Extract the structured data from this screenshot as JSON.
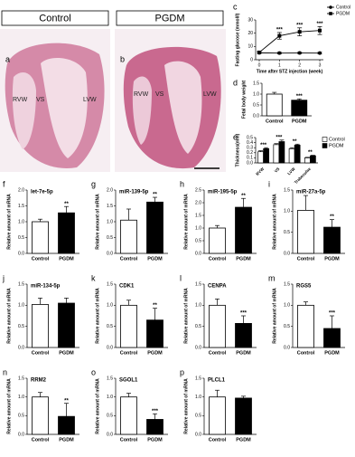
{
  "histology": [
    {
      "label": "a",
      "header": "Control",
      "regions": [
        "RVW",
        "VS",
        "LVW"
      ]
    },
    {
      "label": "b",
      "header": "PGDM",
      "regions": [
        "RVW",
        "VS",
        "LVW"
      ]
    }
  ],
  "chart_data": [
    {
      "type": "line",
      "panel": "c",
      "ylabel": "Fasting glucose (mmol/l)",
      "xlabel": "Time after STZ injection (week)",
      "x": [
        0,
        1,
        2,
        3
      ],
      "xlim": [
        0,
        3
      ],
      "xticks": [
        0,
        1,
        2,
        3
      ],
      "ylim": [
        0,
        30
      ],
      "yticks": [
        0,
        10,
        20,
        30
      ],
      "series": [
        {
          "name": "Control",
          "color": "#000000",
          "values": [
            5.2,
            5.0,
            5.1,
            5.0
          ],
          "errors": [
            0.5,
            0.6,
            0.5,
            0.6
          ]
        },
        {
          "name": "PGDM",
          "color": "#000000",
          "values": [
            5.5,
            18,
            21,
            22
          ],
          "errors": [
            0.8,
            2.5,
            3,
            3
          ]
        }
      ],
      "significance": [
        null,
        "***",
        "***",
        "***"
      ]
    },
    {
      "type": "bar",
      "panel": "d",
      "ylabel": "Fetal body weight",
      "categories": [
        "Control",
        "PGDM"
      ],
      "values": [
        1.0,
        0.72
      ],
      "errors": [
        0.08,
        0.06
      ],
      "colors": [
        "#ffffff",
        "#000000"
      ],
      "significance": [
        null,
        "***"
      ],
      "ylim": [
        0,
        1.5
      ],
      "yticks": [
        {
          "value": 0,
          "label": "0.0"
        },
        0.5,
        {
          "value": 1,
          "label": "1.0"
        },
        1.5
      ]
    },
    {
      "type": "bar",
      "panel": "e",
      "ylabel": "Thickness(mm)",
      "categories": [
        "RVW",
        "VS",
        "LVW",
        "Trabeculae"
      ],
      "series": [
        {
          "name": "Control",
          "color": "#ffffff",
          "values": [
            0.22,
            0.36,
            0.28,
            0.1
          ],
          "errors": [
            0.02,
            0.02,
            0.02,
            0.01
          ]
        },
        {
          "name": "PGDM",
          "color": "#000000",
          "values": [
            0.28,
            0.42,
            0.35,
            0.14
          ],
          "errors": [
            0.02,
            0.03,
            0.02,
            0.01
          ]
        }
      ],
      "significance": [
        "***",
        "***",
        "**",
        "**"
      ],
      "ylim": [
        0,
        0.5
      ],
      "yticks": [
        {
          "value": 0,
          "label": "0.0"
        },
        0.1,
        0.2,
        0.3,
        0.4,
        0.5
      ]
    },
    {
      "type": "bar",
      "panel": "f",
      "title": "let-7e-5p",
      "ylabel": "Relative amount of mRNA",
      "categories": [
        "Control",
        "PGDM"
      ],
      "values": [
        1.0,
        1.28
      ],
      "errors": [
        0.08,
        0.2
      ],
      "colors": [
        "#ffffff",
        "#000000"
      ],
      "significance": [
        null,
        "**"
      ],
      "ylim": [
        0,
        2
      ],
      "yticks": [
        {
          "value": 0,
          "label": "0.0"
        },
        0.5,
        {
          "value": 1,
          "label": "1.0"
        },
        1.5,
        {
          "value": 2,
          "label": "2.0"
        }
      ]
    },
    {
      "type": "bar",
      "panel": "g",
      "title": "miR-139-5p",
      "ylabel": "Relative amount of mRNA",
      "categories": [
        "Control",
        "PGDM"
      ],
      "values": [
        1.05,
        1.62
      ],
      "errors": [
        0.35,
        0.15
      ],
      "colors": [
        "#ffffff",
        "#000000"
      ],
      "significance": [
        null,
        "**"
      ],
      "ylim": [
        0,
        2
      ],
      "yticks": [
        {
          "value": 0,
          "label": "0.0"
        },
        0.5,
        {
          "value": 1,
          "label": "1.0"
        },
        1.5,
        {
          "value": 2,
          "label": "2.0"
        }
      ]
    },
    {
      "type": "bar",
      "panel": "h",
      "title": "miR-195-5p",
      "ylabel": "Relative amount of mRNA",
      "categories": [
        "Control",
        "PGDM"
      ],
      "values": [
        1.0,
        1.82
      ],
      "errors": [
        0.1,
        0.35
      ],
      "colors": [
        "#ffffff",
        "#000000"
      ],
      "significance": [
        null,
        "**"
      ],
      "ylim": [
        0,
        2.5
      ],
      "yticks": [
        {
          "value": 0,
          "label": "0.0"
        },
        0.5,
        {
          "value": 1,
          "label": "1.0"
        },
        1.5,
        {
          "value": 2,
          "label": "2.0"
        },
        2.5
      ]
    },
    {
      "type": "bar",
      "panel": "i",
      "title": "miR-27a-5p",
      "ylabel": "Relative amount of mRNA",
      "categories": [
        "Control",
        "PGDM"
      ],
      "values": [
        1.02,
        0.62
      ],
      "errors": [
        0.35,
        0.18
      ],
      "colors": [
        "#ffffff",
        "#000000"
      ],
      "significance": [
        null,
        "**"
      ],
      "ylim": [
        0,
        1.5
      ],
      "yticks": [
        {
          "value": 0,
          "label": "0.0"
        },
        0.5,
        {
          "value": 1,
          "label": "1.0"
        },
        1.5
      ]
    },
    {
      "type": "bar",
      "panel": "j",
      "title": "miR-134-5p",
      "ylabel": "Relative amount of mRNA",
      "categories": [
        "Control",
        "PGDM"
      ],
      "values": [
        1.02,
        1.05
      ],
      "errors": [
        0.15,
        0.12
      ],
      "colors": [
        "#ffffff",
        "#000000"
      ],
      "significance": [
        null,
        null
      ],
      "ylim": [
        0,
        1.5
      ],
      "yticks": [
        {
          "value": 0,
          "label": "0.0"
        },
        0.5,
        {
          "value": 1,
          "label": "1.0"
        },
        1.5
      ]
    },
    {
      "type": "bar",
      "panel": "k",
      "title": "CDK1",
      "ylabel": "Relative amount of mRNA",
      "categories": [
        "Control",
        "PGDM"
      ],
      "values": [
        1.0,
        0.65
      ],
      "errors": [
        0.12,
        0.28
      ],
      "colors": [
        "#ffffff",
        "#000000"
      ],
      "significance": [
        null,
        "**"
      ],
      "ylim": [
        0,
        1.5
      ],
      "yticks": [
        {
          "value": 0,
          "label": "0.0"
        },
        0.5,
        {
          "value": 1,
          "label": "1.0"
        },
        1.5
      ]
    },
    {
      "type": "bar",
      "panel": "l",
      "title": "CENPA",
      "ylabel": "Relative amount of mRNA",
      "categories": [
        "Control",
        "PGDM"
      ],
      "values": [
        1.0,
        0.57
      ],
      "errors": [
        0.15,
        0.18
      ],
      "colors": [
        "#ffffff",
        "#000000"
      ],
      "significance": [
        null,
        "***"
      ],
      "ylim": [
        0,
        1.5
      ],
      "yticks": [
        {
          "value": 0,
          "label": "0.0"
        },
        0.5,
        {
          "value": 1,
          "label": "1.0"
        },
        1.5
      ]
    },
    {
      "type": "bar",
      "panel": "m",
      "title": "RGS5",
      "ylabel": "Relative amount of mRNA",
      "categories": [
        "Control",
        "PGDM"
      ],
      "values": [
        1.0,
        0.45
      ],
      "errors": [
        0.08,
        0.3
      ],
      "colors": [
        "#ffffff",
        "#000000"
      ],
      "significance": [
        null,
        "***"
      ],
      "ylim": [
        0,
        1.5
      ],
      "yticks": [
        {
          "value": 0,
          "label": "0.0"
        },
        0.5,
        {
          "value": 1,
          "label": "1.0"
        },
        1.5
      ]
    },
    {
      "type": "bar",
      "panel": "n",
      "title": "RRM2",
      "ylabel": "Relative amount of mRNA",
      "categories": [
        "Control",
        "PGDM"
      ],
      "values": [
        1.0,
        0.48
      ],
      "errors": [
        0.12,
        0.35
      ],
      "colors": [
        "#ffffff",
        "#000000"
      ],
      "significance": [
        null,
        "**"
      ],
      "ylim": [
        0,
        1.5
      ],
      "yticks": [
        {
          "value": 0,
          "label": "0.0"
        },
        0.5,
        {
          "value": 1,
          "label": "1.0"
        },
        1.5
      ]
    },
    {
      "type": "bar",
      "panel": "o",
      "title": "SGOL1",
      "ylabel": "Relative amount of mRNA",
      "categories": [
        "Control",
        "PGDM"
      ],
      "values": [
        1.0,
        0.4
      ],
      "errors": [
        0.1,
        0.15
      ],
      "colors": [
        "#ffffff",
        "#000000"
      ],
      "significance": [
        null,
        "***"
      ],
      "ylim": [
        0,
        1.5
      ],
      "yticks": [
        {
          "value": 0,
          "label": "0.0"
        },
        0.5,
        {
          "value": 1,
          "label": "1.0"
        },
        1.5
      ]
    },
    {
      "type": "bar",
      "panel": "p",
      "title": "PLCL1",
      "ylabel": "Relative amount of mRNA",
      "categories": [
        "Control",
        "PGDM"
      ],
      "values": [
        1.0,
        0.97
      ],
      "errors": [
        0.18,
        0.05
      ],
      "colors": [
        "#ffffff",
        "#000000"
      ],
      "significance": [
        null,
        null
      ],
      "ylim": [
        0,
        1.5
      ],
      "yticks": [
        {
          "value": 0,
          "label": "0.0"
        },
        0.5,
        {
          "value": 1,
          "label": "1.0"
        },
        1.5
      ]
    }
  ]
}
